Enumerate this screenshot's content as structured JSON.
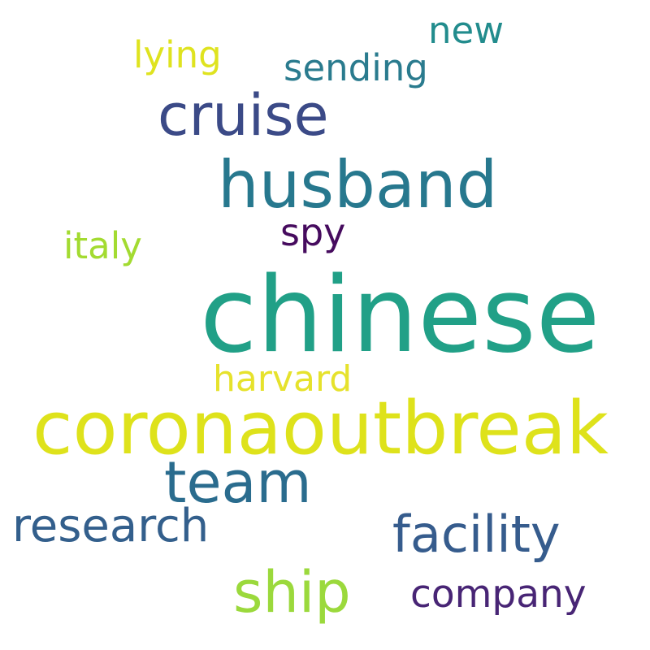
{
  "background_color": "#ffffff",
  "words": {
    "chinese": {
      "text": "chinese",
      "color": "#21a087"
    },
    "coronaoutbreak": {
      "text": "coronaoutbreak",
      "color": "#dee21b"
    },
    "husband": {
      "text": "husband",
      "color": "#27788e"
    },
    "cruise": {
      "text": "cruise",
      "color": "#3b4a87"
    },
    "ship": {
      "text": "ship",
      "color": "#9bd93c"
    },
    "team": {
      "text": "team",
      "color": "#2a6c8e"
    },
    "facility": {
      "text": "facility",
      "color": "#365c8d"
    },
    "research": {
      "text": "research",
      "color": "#335f8c"
    },
    "company": {
      "text": "company",
      "color": "#482575"
    },
    "harvard": {
      "text": "harvard",
      "color": "#e6e22c"
    },
    "italy": {
      "text": "italy",
      "color": "#a3db31"
    },
    "sending": {
      "text": "sending",
      "color": "#2a7b8e"
    },
    "lying": {
      "text": "lying",
      "color": "#dfe31f"
    },
    "spy": {
      "text": "spy",
      "color": "#460b5e"
    },
    "new": {
      "text": "new",
      "color": "#228c8d"
    }
  }
}
